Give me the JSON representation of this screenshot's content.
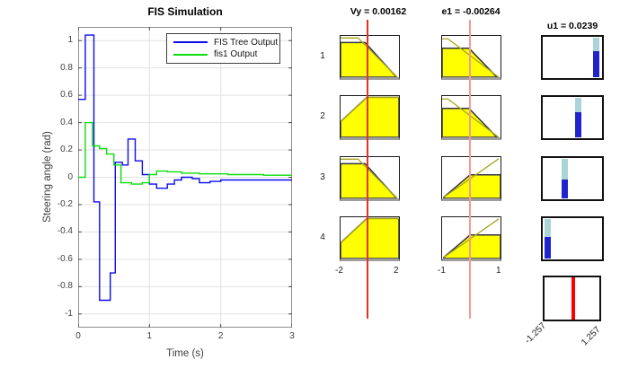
{
  "chart_data": {
    "type": "line",
    "line_style": "stairs",
    "title": "FIS Simulation",
    "xlabel": "Time (s)",
    "ylabel": "Steering angle (rad)",
    "xlim": [
      0,
      3
    ],
    "ylim": [
      -1.1,
      1.1
    ],
    "xticks": [
      0,
      1,
      2,
      3
    ],
    "yticks": [
      -1,
      -0.8,
      -0.6,
      -0.4,
      -0.2,
      0,
      0.2,
      0.4,
      0.6,
      0.8,
      1
    ],
    "grid": true,
    "legend_position": "upper right",
    "grid_color": "#e2e2e2",
    "box_color": "#8f8f8f",
    "tick_color": "#4a4a4a",
    "series": [
      {
        "name": "FIS Tree Output",
        "color": "#0b0bee",
        "steps": [
          [
            0,
            0.57
          ],
          [
            0.1,
            1.04
          ],
          [
            0.22,
            -0.18
          ],
          [
            0.3,
            -0.9
          ],
          [
            0.45,
            -0.7
          ],
          [
            0.52,
            0.11
          ],
          [
            0.62,
            0.09
          ],
          [
            0.7,
            0.28
          ],
          [
            0.8,
            0.12
          ],
          [
            0.9,
            0.02
          ],
          [
            1.0,
            -0.05
          ],
          [
            1.1,
            -0.08
          ],
          [
            1.25,
            -0.05
          ],
          [
            1.35,
            -0.02
          ],
          [
            1.45,
            0.0
          ],
          [
            1.6,
            -0.01
          ],
          [
            1.7,
            -0.04
          ],
          [
            1.85,
            -0.03
          ],
          [
            2.0,
            -0.02
          ],
          [
            2.5,
            -0.02
          ],
          [
            3.0,
            -0.02
          ]
        ]
      },
      {
        "name": "fis1 Output",
        "color": "#0ddd0d",
        "steps": [
          [
            0,
            0.0
          ],
          [
            0.1,
            0.4
          ],
          [
            0.2,
            0.23
          ],
          [
            0.3,
            0.21
          ],
          [
            0.4,
            0.17
          ],
          [
            0.5,
            0.09
          ],
          [
            0.6,
            -0.04
          ],
          [
            0.75,
            -0.05
          ],
          [
            0.9,
            -0.04
          ],
          [
            1.0,
            0.02
          ],
          [
            1.1,
            0.045
          ],
          [
            1.25,
            0.04
          ],
          [
            1.45,
            0.03
          ],
          [
            1.7,
            0.025
          ],
          [
            2.1,
            0.02
          ],
          [
            2.6,
            0.015
          ],
          [
            3.0,
            0.015
          ]
        ]
      }
    ]
  },
  "rule_viewer": {
    "input_headers": [
      {
        "label": "Vy = 0.00162"
      },
      {
        "label": "e1 = -0.00264"
      }
    ],
    "output_header": "u1 = 0.0239",
    "row_labels": [
      "1",
      "2",
      "3",
      "4"
    ],
    "vy_axis": [
      "-2",
      "2"
    ],
    "e1_axis": [
      "-1",
      "1"
    ],
    "output_axis": [
      "-1.257",
      "1.257"
    ],
    "input_line_x": [
      0.47,
      0.48
    ],
    "input_line_colors": [
      "#e33128",
      "#f59b94"
    ],
    "output_line_x": 0.52,
    "output_line_color": "#ff0000",
    "mf_colors": {
      "fill": "#ffff00",
      "outline": "#32324a",
      "mf_line": "#a6a61e",
      "bar_blue": "#1f24cc",
      "bar_cyan": "#aad4d6"
    },
    "rows": [
      {
        "label": "1",
        "vy": {
          "fill": [
            [
              0,
              0.16
            ],
            [
              0.42,
              0.16
            ],
            [
              0.96,
              1
            ],
            [
              0,
              1
            ]
          ],
          "line": [
            [
              0,
              0.05
            ],
            [
              0.3,
              0.05
            ],
            [
              0.97,
              1
            ]
          ]
        },
        "e1": {
          "fill": [
            [
              0,
              0.3
            ],
            [
              0.46,
              0.3
            ],
            [
              0.94,
              1
            ],
            [
              0,
              1
            ]
          ],
          "line": [
            [
              0,
              0.07
            ],
            [
              0.1,
              0.07
            ],
            [
              0.97,
              1
            ]
          ]
        },
        "u1": {
          "x": 0.9,
          "clip": 0.35
        }
      },
      {
        "label": "2",
        "vy": {
          "fill": [
            [
              0,
              0.62
            ],
            [
              0.45,
              0.03
            ],
            [
              1,
              0.03
            ],
            [
              1,
              1
            ],
            [
              0,
              1
            ]
          ],
          "line": [
            [
              0,
              0.62
            ],
            [
              0.45,
              0.03
            ],
            [
              1,
              0.03
            ]
          ]
        },
        "e1": {
          "fill": [
            [
              0,
              0.3
            ],
            [
              0.46,
              0.3
            ],
            [
              0.94,
              1
            ],
            [
              0,
              1
            ]
          ],
          "line": [
            [
              0,
              0.07
            ],
            [
              0.1,
              0.07
            ],
            [
              0.97,
              1
            ]
          ]
        },
        "u1": {
          "x": 0.6,
          "clip": 0.37
        }
      },
      {
        "label": "3",
        "vy": {
          "fill": [
            [
              0,
              0.16
            ],
            [
              0.42,
              0.16
            ],
            [
              0.96,
              1
            ],
            [
              0,
              1
            ]
          ],
          "line": [
            [
              0,
              0.05
            ],
            [
              0.3,
              0.05
            ],
            [
              0.97,
              1
            ]
          ]
        },
        "e1": {
          "fill": [
            [
              0.03,
              0.97
            ],
            [
              0.48,
              0.43
            ],
            [
              1,
              0.43
            ],
            [
              1,
              1
            ],
            [
              0.03,
              1
            ]
          ],
          "line": [
            [
              0.03,
              0.97
            ],
            [
              0.97,
              0.04
            ]
          ]
        },
        "u1": {
          "x": 0.37,
          "clip": 0.53
        }
      },
      {
        "label": "4",
        "vy": {
          "fill": [
            [
              0,
              0.62
            ],
            [
              0.45,
              0.03
            ],
            [
              1,
              0.03
            ],
            [
              1,
              1
            ],
            [
              0,
              1
            ]
          ],
          "line": [
            [
              0,
              0.62
            ],
            [
              0.45,
              0.03
            ],
            [
              1,
              0.03
            ]
          ]
        },
        "e1": {
          "fill": [
            [
              0.03,
              0.97
            ],
            [
              0.48,
              0.43
            ],
            [
              1,
              0.43
            ],
            [
              1,
              1
            ],
            [
              0.03,
              1
            ]
          ],
          "line": [
            [
              0.03,
              0.97
            ],
            [
              0.97,
              0.04
            ]
          ]
        },
        "u1": {
          "x": 0.09,
          "clip": 0.45
        }
      }
    ]
  }
}
